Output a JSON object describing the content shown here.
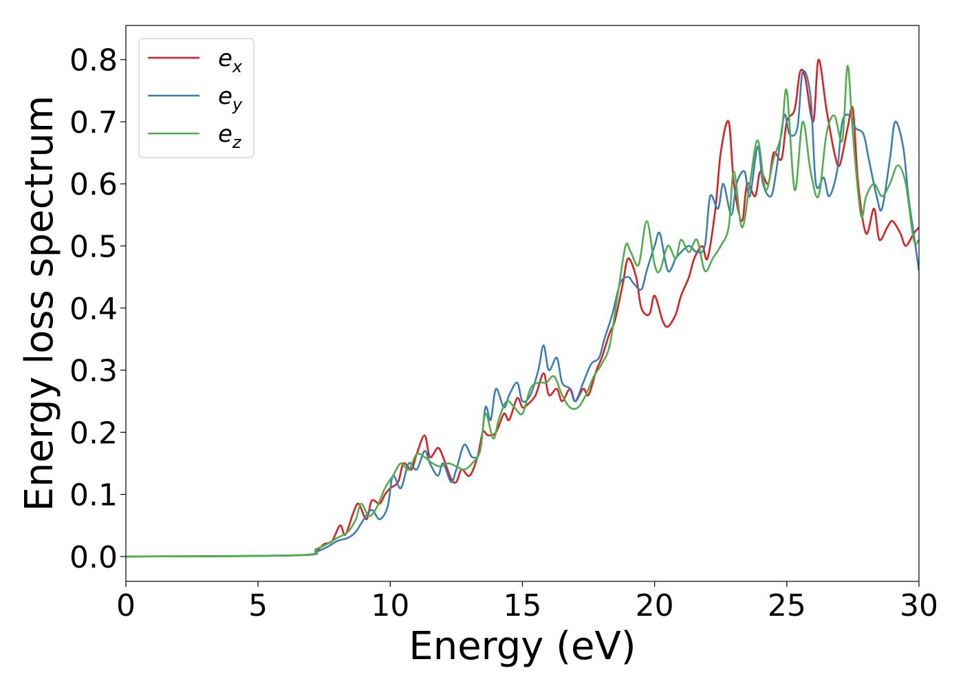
{
  "chart_data": {
    "type": "line",
    "xlabel": "Energy (eV)",
    "ylabel": "Energy loss spectrum",
    "xlim": [
      0,
      30
    ],
    "ylim": [
      -0.04,
      0.855
    ],
    "xticks": [
      "0",
      "5",
      "10",
      "15",
      "20",
      "25",
      "30"
    ],
    "yticks": [
      "0.0",
      "0.1",
      "0.2",
      "0.3",
      "0.4",
      "0.5",
      "0.6",
      "0.7",
      "0.8"
    ],
    "grid": false,
    "legend": "top-left",
    "series": [
      {
        "name_base": "e",
        "name_sub": "x",
        "color": "#e41a1c",
        "x": [
          0,
          6.5,
          7.2,
          7.5,
          7.8,
          8.1,
          8.3,
          8.6,
          8.8,
          9.1,
          9.3,
          9.6,
          9.8,
          10.0,
          10.3,
          10.5,
          10.8,
          11.0,
          11.3,
          11.5,
          11.8,
          12.0,
          12.3,
          12.5,
          12.7,
          13.0,
          13.3,
          13.5,
          13.7,
          14.0,
          14.3,
          14.5,
          14.8,
          15.0,
          15.2,
          15.5,
          15.8,
          16.0,
          16.3,
          16.5,
          16.8,
          17.0,
          17.3,
          17.5,
          17.8,
          18.0,
          18.3,
          18.5,
          18.8,
          19.0,
          19.3,
          19.5,
          19.8,
          20.0,
          20.3,
          20.5,
          20.8,
          21.0,
          21.3,
          21.5,
          21.8,
          22.0,
          22.3,
          22.5,
          22.8,
          23.0,
          23.3,
          23.5,
          23.8,
          24.0,
          24.3,
          24.5,
          24.8,
          25.0,
          25.3,
          25.5,
          25.7,
          26.0,
          26.2,
          26.5,
          26.8,
          27.0,
          27.3,
          27.5,
          27.7,
          28.0,
          28.3,
          28.5,
          28.8,
          29.0,
          29.3,
          29.5,
          29.8,
          30.0
        ],
        "y": [
          0.0,
          0.002,
          0.01,
          0.02,
          0.025,
          0.05,
          0.035,
          0.07,
          0.085,
          0.06,
          0.09,
          0.085,
          0.1,
          0.11,
          0.12,
          0.15,
          0.14,
          0.165,
          0.195,
          0.16,
          0.175,
          0.16,
          0.125,
          0.12,
          0.14,
          0.13,
          0.16,
          0.2,
          0.195,
          0.2,
          0.23,
          0.22,
          0.255,
          0.24,
          0.245,
          0.26,
          0.295,
          0.26,
          0.27,
          0.25,
          0.27,
          0.25,
          0.27,
          0.26,
          0.3,
          0.32,
          0.36,
          0.38,
          0.44,
          0.48,
          0.45,
          0.4,
          0.39,
          0.42,
          0.38,
          0.37,
          0.39,
          0.42,
          0.45,
          0.48,
          0.5,
          0.48,
          0.56,
          0.65,
          0.7,
          0.6,
          0.54,
          0.6,
          0.58,
          0.62,
          0.6,
          0.65,
          0.64,
          0.7,
          0.72,
          0.78,
          0.77,
          0.7,
          0.8,
          0.72,
          0.65,
          0.63,
          0.69,
          0.72,
          0.6,
          0.52,
          0.56,
          0.51,
          0.53,
          0.54,
          0.52,
          0.5,
          0.52,
          0.53
        ]
      },
      {
        "name_base": "e",
        "name_sub": "y",
        "color": "#377eb8",
        "x": [
          0,
          6.5,
          7.2,
          7.6,
          8.0,
          8.4,
          8.7,
          9.0,
          9.3,
          9.6,
          9.9,
          10.1,
          10.4,
          10.7,
          11.0,
          11.3,
          11.5,
          11.8,
          12.0,
          12.3,
          12.5,
          12.8,
          13.1,
          13.4,
          13.6,
          13.8,
          14.0,
          14.3,
          14.5,
          14.8,
          15.0,
          15.3,
          15.6,
          15.8,
          16.0,
          16.3,
          16.5,
          16.8,
          17.0,
          17.3,
          17.6,
          17.9,
          18.1,
          18.4,
          18.7,
          19.0,
          19.2,
          19.5,
          19.7,
          20.0,
          20.2,
          20.5,
          20.8,
          21.0,
          21.3,
          21.6,
          21.9,
          22.1,
          22.4,
          22.6,
          22.9,
          23.1,
          23.4,
          23.6,
          23.9,
          24.1,
          24.4,
          24.6,
          24.9,
          25.1,
          25.4,
          25.6,
          25.9,
          26.1,
          26.4,
          26.6,
          26.9,
          27.1,
          27.4,
          27.6,
          27.9,
          28.1,
          28.4,
          28.6,
          28.9,
          29.1,
          29.4,
          29.6,
          29.8,
          30.0
        ],
        "y": [
          0.0,
          0.002,
          0.008,
          0.015,
          0.025,
          0.03,
          0.04,
          0.06,
          0.075,
          0.06,
          0.08,
          0.13,
          0.11,
          0.15,
          0.14,
          0.17,
          0.15,
          0.13,
          0.15,
          0.12,
          0.14,
          0.18,
          0.16,
          0.17,
          0.24,
          0.22,
          0.27,
          0.24,
          0.26,
          0.28,
          0.25,
          0.26,
          0.3,
          0.34,
          0.3,
          0.32,
          0.28,
          0.27,
          0.25,
          0.28,
          0.31,
          0.32,
          0.35,
          0.39,
          0.44,
          0.45,
          0.44,
          0.43,
          0.46,
          0.5,
          0.52,
          0.46,
          0.48,
          0.49,
          0.5,
          0.49,
          0.5,
          0.58,
          0.56,
          0.6,
          0.55,
          0.6,
          0.62,
          0.58,
          0.66,
          0.6,
          0.58,
          0.62,
          0.71,
          0.68,
          0.69,
          0.78,
          0.74,
          0.6,
          0.61,
          0.58,
          0.62,
          0.7,
          0.71,
          0.69,
          0.68,
          0.64,
          0.58,
          0.56,
          0.64,
          0.7,
          0.66,
          0.58,
          0.52,
          0.46
        ]
      },
      {
        "name_base": "e",
        "name_sub": "z",
        "color": "#4daf4a",
        "x": [
          0,
          6.5,
          7.2,
          7.6,
          8.0,
          8.4,
          8.7,
          8.9,
          9.2,
          9.5,
          9.8,
          10.1,
          10.4,
          10.7,
          11.0,
          11.3,
          11.6,
          11.9,
          12.2,
          12.5,
          12.8,
          13.1,
          13.4,
          13.6,
          13.9,
          14.1,
          14.4,
          14.7,
          15.0,
          15.3,
          15.6,
          15.9,
          16.2,
          16.5,
          16.8,
          17.1,
          17.4,
          17.7,
          18.0,
          18.3,
          18.6,
          18.9,
          19.1,
          19.4,
          19.7,
          20.0,
          20.2,
          20.5,
          20.8,
          21.0,
          21.3,
          21.6,
          21.9,
          22.2,
          22.5,
          22.8,
          23.0,
          23.3,
          23.6,
          23.9,
          24.2,
          24.5,
          24.8,
          25.0,
          25.3,
          25.6,
          25.9,
          26.2,
          26.5,
          26.8,
          27.1,
          27.3,
          27.5,
          27.8,
          28.0,
          28.3,
          28.6,
          28.9,
          29.2,
          29.5,
          29.8,
          30.0
        ],
        "y": [
          0.0,
          0.002,
          0.012,
          0.02,
          0.03,
          0.04,
          0.06,
          0.085,
          0.065,
          0.08,
          0.11,
          0.13,
          0.15,
          0.14,
          0.165,
          0.16,
          0.15,
          0.145,
          0.15,
          0.145,
          0.14,
          0.15,
          0.17,
          0.23,
          0.19,
          0.22,
          0.25,
          0.24,
          0.23,
          0.27,
          0.28,
          0.28,
          0.29,
          0.26,
          0.24,
          0.24,
          0.26,
          0.29,
          0.31,
          0.34,
          0.42,
          0.5,
          0.49,
          0.47,
          0.54,
          0.47,
          0.46,
          0.5,
          0.48,
          0.51,
          0.49,
          0.51,
          0.46,
          0.48,
          0.5,
          0.53,
          0.62,
          0.53,
          0.6,
          0.67,
          0.59,
          0.64,
          0.68,
          0.75,
          0.59,
          0.7,
          0.62,
          0.58,
          0.68,
          0.71,
          0.67,
          0.79,
          0.68,
          0.55,
          0.58,
          0.6,
          0.58,
          0.6,
          0.63,
          0.6,
          0.51,
          0.51
        ]
      }
    ]
  }
}
